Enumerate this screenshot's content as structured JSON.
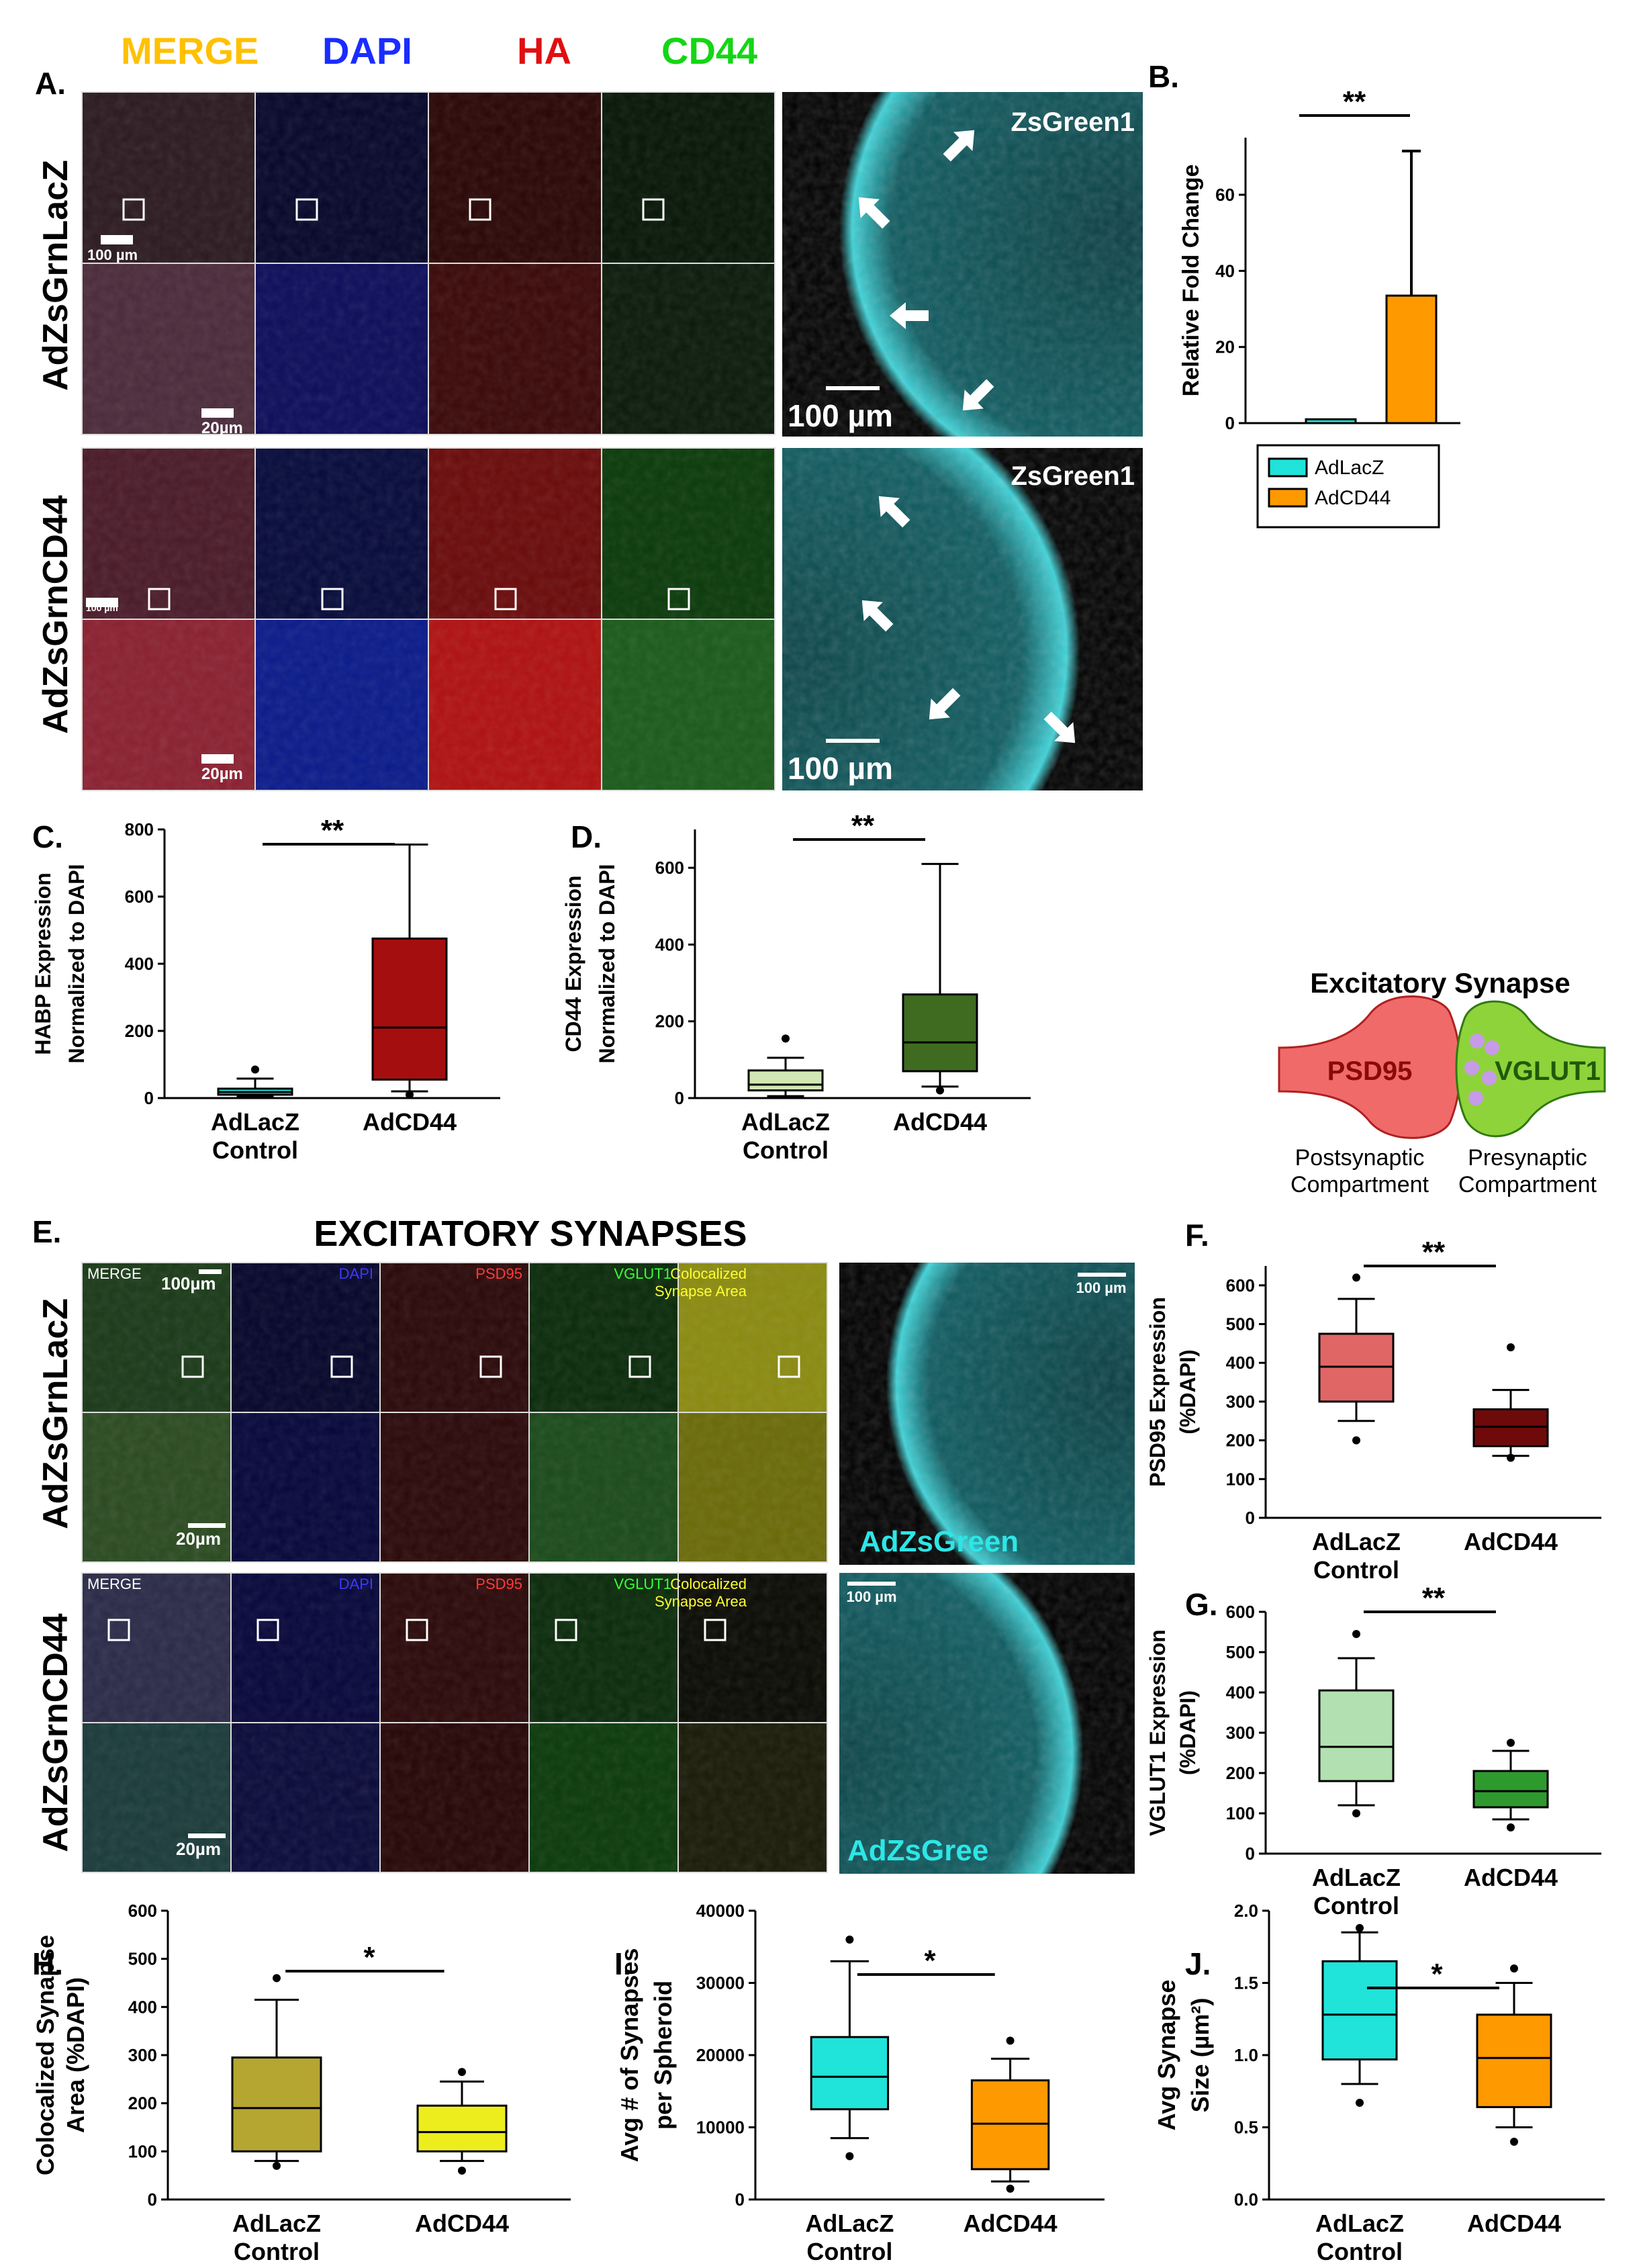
{
  "panel_letters": {
    "A": "A.",
    "B": "B.",
    "C": "C.",
    "D": "D.",
    "E": "E.",
    "F": "F.",
    "G": "G.",
    "H": "H.",
    "I": "I.",
    "J": "J."
  },
  "channels_A": {
    "merge": "MERGE",
    "dapi": "DAPI",
    "ha": "HA",
    "cd44": "CD44"
  },
  "rows_A": {
    "row1": "AdZsGrnLacZ",
    "row2": "AdZsGrnCD44"
  },
  "scale_A": {
    "s100": "100 µm",
    "s20": "20µm",
    "s100_small": "100 µm",
    "big": "100 µm",
    "zs": "ZsGreen1"
  },
  "panelE": {
    "title": "EXCITATORY SYNAPSES",
    "merge": "MERGE",
    "dapi": "DAPI",
    "psd95": "PSD95",
    "vglut1": "VGLUT1",
    "coloc1": "Colocalized",
    "coloc2": "Synapse Area",
    "row1": "AdZsGrnLacZ",
    "row2": "AdZsGrnCD44",
    "s100": "100µm",
    "s20": "20µm",
    "s100r": "100 µm",
    "zs1": "AdZsGreen",
    "zs2": "AdZsGree"
  },
  "diagram": {
    "title": "Excitatory Synapse",
    "psd95": "PSD95",
    "vglut1": "VGLUT1",
    "post1": "Postsynaptic",
    "post2": "Compartment",
    "pre1": "Presynaptic",
    "pre2": "Compartment"
  },
  "colors": {
    "cyan": "#20E3DA",
    "orange": "#FF9900",
    "red_box": "#A50E0E",
    "green_light": "#D1E8B4",
    "green_dark": "#3F6B20",
    "psd_box": "#E06666",
    "psd_dark": "#6E0A0A",
    "vg_light": "#B2E0B0",
    "vg_dark": "#2E9A2E",
    "olive": "#B5A632",
    "yellow": "#EDED1E"
  },
  "chart_data": [
    {
      "id": "B",
      "type": "bar",
      "ylabel": "Relative Fold Change",
      "ylim": [
        0,
        75
      ],
      "yticks": [
        0,
        20,
        40,
        60
      ],
      "categories": [
        "AdLacZ",
        "AdCD44"
      ],
      "values": [
        1,
        33.5
      ],
      "err": [
        0,
        38
      ],
      "legend": [
        "AdLacZ",
        "AdCD44"
      ],
      "sig": "**"
    },
    {
      "id": "C",
      "type": "box",
      "ylabel1": "HABP Expression",
      "ylabel2": "Normalized to DAPI",
      "ylim": [
        0,
        800
      ],
      "yticks": [
        0,
        200,
        400,
        600,
        800
      ],
      "categories": [
        [
          "AdLacZ",
          "Control"
        ],
        [
          "AdCD44"
        ]
      ],
      "sig": "**",
      "boxes": [
        {
          "min": 5,
          "q1": 10,
          "med": 18,
          "q3": 28,
          "max": 58,
          "out": [
            85
          ]
        },
        {
          "min": 20,
          "q1": 55,
          "med": 210,
          "q3": 475,
          "max": 755,
          "out": [
            10
          ]
        }
      ]
    },
    {
      "id": "D",
      "type": "box",
      "ylabel1": "CD44 Expression",
      "ylabel2": "Normalized to DAPI",
      "ylim": [
        0,
        700
      ],
      "yticks": [
        0,
        200,
        400,
        600
      ],
      "categories": [
        [
          "AdLacZ",
          "Control"
        ],
        [
          "AdCD44"
        ]
      ],
      "sig": "**",
      "boxes": [
        {
          "min": 5,
          "q1": 20,
          "med": 35,
          "q3": 72,
          "max": 105,
          "out": [
            155
          ]
        },
        {
          "min": 30,
          "q1": 70,
          "med": 145,
          "q3": 270,
          "max": 610,
          "out": [
            20
          ]
        }
      ]
    },
    {
      "id": "F",
      "type": "box",
      "ylabel1": "PSD95 Expression",
      "ylabel2": "(%DAPI)",
      "ylim": [
        0,
        650
      ],
      "yticks": [
        0,
        100,
        200,
        300,
        400,
        500,
        600
      ],
      "categories": [
        [
          "AdLacZ",
          "Control"
        ],
        [
          "AdCD44"
        ]
      ],
      "sig": "**",
      "boxes": [
        {
          "min": 250,
          "q1": 300,
          "med": 390,
          "q3": 475,
          "max": 565,
          "out": [
            620,
            200
          ]
        },
        {
          "min": 160,
          "q1": 185,
          "med": 235,
          "q3": 280,
          "max": 330,
          "out": [
            440,
            155
          ]
        }
      ]
    },
    {
      "id": "G",
      "type": "box",
      "ylabel1": "VGLUT1 Expression",
      "ylabel2": "(%DAPI)",
      "ylim": [
        0,
        600
      ],
      "yticks": [
        0,
        100,
        200,
        300,
        400,
        500,
        600
      ],
      "categories": [
        [
          "AdLacZ",
          "Control"
        ],
        [
          "AdCD44"
        ]
      ],
      "sig": "**",
      "boxes": [
        {
          "min": 120,
          "q1": 180,
          "med": 265,
          "q3": 405,
          "max": 485,
          "out": [
            545,
            100
          ]
        },
        {
          "min": 85,
          "q1": 115,
          "med": 155,
          "q3": 205,
          "max": 255,
          "out": [
            275,
            65
          ]
        }
      ]
    },
    {
      "id": "H",
      "type": "box",
      "ylabel1": "Colocalized Synapse",
      "ylabel2": "Area (%DAPI)",
      "ylim": [
        0,
        600
      ],
      "yticks": [
        0,
        100,
        200,
        300,
        400,
        500,
        600
      ],
      "categories": [
        [
          "AdLacZ",
          "Control"
        ],
        [
          "AdCD44"
        ]
      ],
      "sig": "*",
      "boxes": [
        {
          "min": 80,
          "q1": 100,
          "med": 190,
          "q3": 295,
          "max": 415,
          "out": [
            460,
            70
          ]
        },
        {
          "min": 80,
          "q1": 100,
          "med": 140,
          "q3": 195,
          "max": 245,
          "out": [
            265,
            60
          ]
        }
      ]
    },
    {
      "id": "I",
      "type": "box",
      "ylabel1": "Avg # of Synapses",
      "ylabel2": "per Spheroid",
      "ylim": [
        0,
        40000
      ],
      "yticks": [
        0,
        10000,
        20000,
        30000,
        40000
      ],
      "categories": [
        [
          "AdLacZ",
          "Control"
        ],
        [
          "AdCD44"
        ]
      ],
      "sig": "*",
      "boxes": [
        {
          "min": 8500,
          "q1": 12500,
          "med": 17000,
          "q3": 22500,
          "max": 33000,
          "out": [
            36000,
            6000
          ]
        },
        {
          "min": 2500,
          "q1": 4200,
          "med": 10500,
          "q3": 16500,
          "max": 19500,
          "out": [
            22000,
            1500
          ]
        }
      ]
    },
    {
      "id": "J",
      "type": "box",
      "ylabel1": "Avg Synapse",
      "ylabel2": "Size (µm²)",
      "ylim": [
        0,
        2.0
      ],
      "yticks": [
        0.0,
        0.5,
        1.0,
        1.5,
        2.0
      ],
      "categories": [
        [
          "AdLacZ",
          "Control"
        ],
        [
          "AdCD44"
        ]
      ],
      "sig": "*",
      "boxes": [
        {
          "min": 0.8,
          "q1": 0.97,
          "med": 1.28,
          "q3": 1.65,
          "max": 1.85,
          "out": [
            1.88,
            0.67
          ]
        },
        {
          "min": 0.5,
          "q1": 0.64,
          "med": 0.98,
          "q3": 1.28,
          "max": 1.5,
          "out": [
            1.6,
            0.4
          ]
        }
      ]
    }
  ]
}
